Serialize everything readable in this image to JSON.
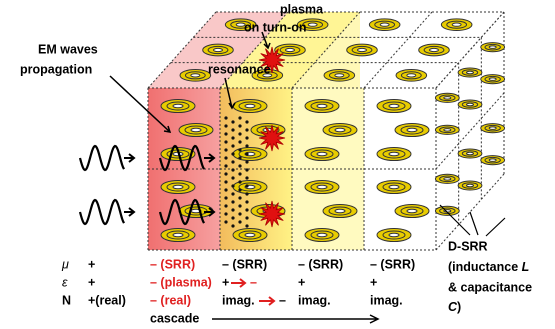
{
  "annotations": {
    "plasma_on": [
      "plasma",
      "on  turn-on"
    ],
    "em_waves": [
      "EM waves",
      "propagation"
    ],
    "resonance": "resonance"
  },
  "table": {
    "rows": [
      [
        "μ",
        "+"
      ],
      [
        "ε",
        "+"
      ],
      [
        "N",
        "+(real)"
      ]
    ],
    "columns": [
      {
        "mu": "– (SRR)",
        "eps": "– (plasma)",
        "n": "– (real)"
      },
      {
        "mu": "– (SRR)",
        "eps": [
          "+",
          "–"
        ],
        "n": [
          "imag.",
          "–"
        ]
      },
      {
        "mu": "– (SRR)",
        "eps": "+",
        "n": "imag."
      },
      {
        "mu": "– (SRR)",
        "eps": "+",
        "n": "imag."
      }
    ]
  },
  "legend": {
    "d_srr": [
      "D-SRR",
      "(inductance ",
      "L",
      "& capacitance",
      "C",
      ")"
    ]
  },
  "cascade": "cascade"
}
